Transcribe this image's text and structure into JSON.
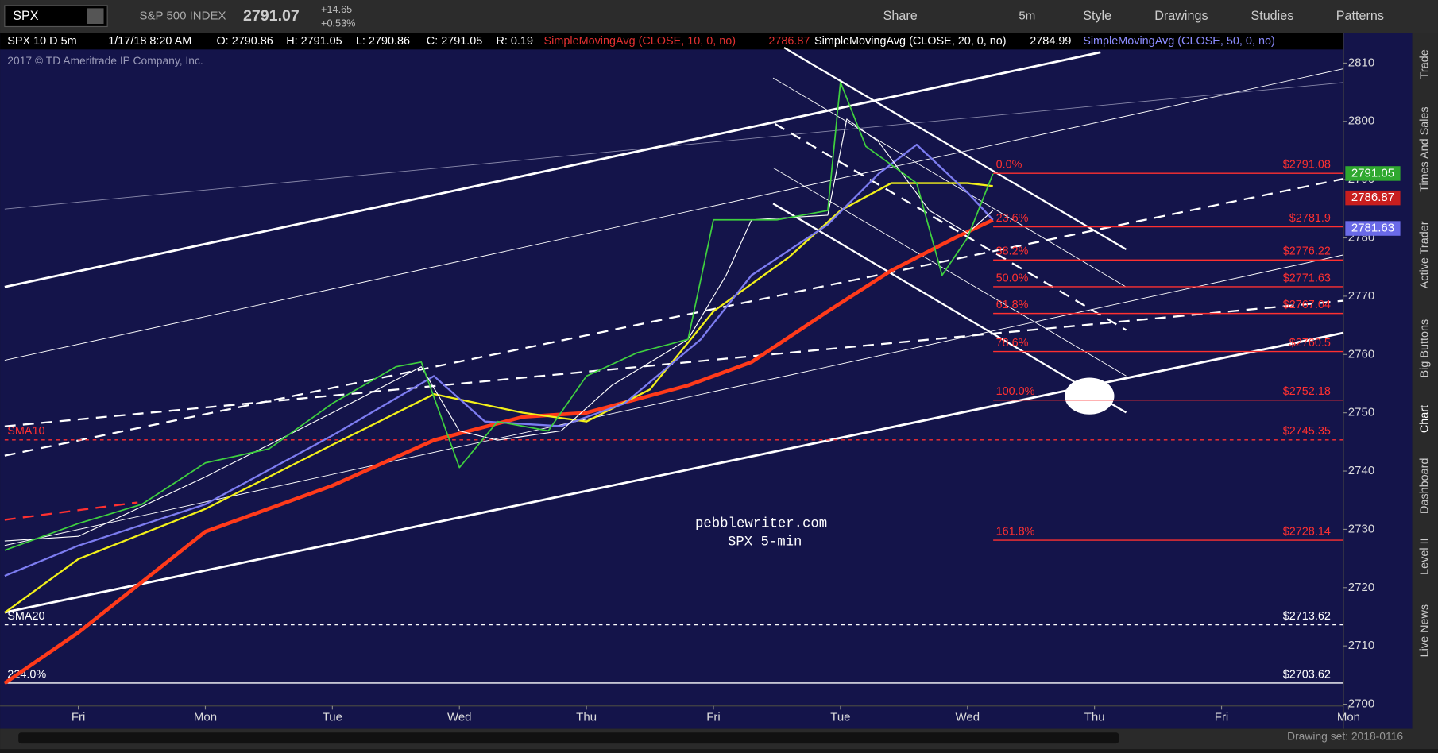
{
  "toolbar": {
    "symbol": "SPX",
    "name": "S&P 500 INDEX",
    "last": "2791.07",
    "change": "+14.65",
    "change_pct": "+0.53%",
    "buttons": [
      "Share",
      "5m",
      "Style",
      "Drawings",
      "Studies",
      "Patterns"
    ]
  },
  "header": {
    "items": [
      "SPX 10 D 5m",
      "1/17/18 8:20 AM",
      "O: 2790.86",
      "H: 2791.05",
      "L: 2790.86",
      "C: 2791.05",
      "R: 0.19"
    ],
    "studies": [
      {
        "label": "SimpleMovingAvg (CLOSE, 10, 0, no)",
        "value": "2786.87",
        "color": "#e03030"
      },
      {
        "label": "SimpleMovingAvg (CLOSE, 20, 0, no)",
        "value": "2784.99",
        "color": "#ffffff"
      },
      {
        "label": "SimpleMovingAvg (CLOSE, 50, 0, no)",
        "value": "",
        "color": "#8c8cff"
      }
    ]
  },
  "copyright": "2017 © TD Ameritrade IP Company, Inc.",
  "side_tabs": [
    "Trade",
    "Times And Sales",
    "Active Trader",
    "Big Buttons",
    "Chart",
    "Dashboard",
    "Level II",
    "Live News"
  ],
  "footer": "Drawing set: 2018-0116",
  "chart_data": {
    "type": "line",
    "annotations": [
      "pebblewriter.com",
      "SPX 5-min"
    ],
    "xlim": [
      -0.58,
      9.96
    ],
    "xticks": [
      {
        "value": 0,
        "label": "Fri"
      },
      {
        "value": 1,
        "label": "Mon"
      },
      {
        "value": 2,
        "label": "Tue"
      },
      {
        "value": 3,
        "label": "Wed"
      },
      {
        "value": 4,
        "label": "Thu"
      },
      {
        "value": 5,
        "label": "Fri"
      },
      {
        "value": 6,
        "label": "Tue"
      },
      {
        "value": 7,
        "label": "Wed"
      },
      {
        "value": 8,
        "label": "Thu"
      },
      {
        "value": 9,
        "label": "Fri"
      },
      {
        "value": 10,
        "label": "Mon"
      }
    ],
    "ylim": [
      2699.7,
      2815
    ],
    "yticks": [
      2700,
      2710,
      2720,
      2730,
      2740,
      2750,
      2760,
      2770,
      2780,
      2790,
      2800,
      2810
    ],
    "series": [
      {
        "color": "#ff3a1a",
        "width": 4,
        "x": [
          -0.58,
          0,
          1,
          2,
          2.8,
          3.5,
          4,
          4.8,
          5.3,
          5.9,
          6.4,
          6.9,
          7.2
        ],
        "values": [
          2703.6,
          2712.3,
          2729.6,
          2737.5,
          2745.3,
          2749.3,
          2750,
          2754.7,
          2758.7,
          2767.4,
          2774.4,
          2780,
          2783.1
        ]
      },
      {
        "color": "#f2f01a",
        "width": 2,
        "x": [
          -0.58,
          0,
          1,
          2,
          2.8,
          3.5,
          4,
          4.5,
          5,
          5.6,
          6,
          6.4,
          7,
          7.2
        ],
        "values": [
          2715.7,
          2724.9,
          2733.5,
          2744.5,
          2753.2,
          2750,
          2748.5,
          2754,
          2767.4,
          2776.8,
          2784.7,
          2789.4,
          2789.4,
          2788.9
        ]
      },
      {
        "color": "#7c7cf0",
        "width": 2,
        "x": [
          -0.58,
          0,
          1,
          2,
          2.8,
          3.2,
          3.8,
          4.3,
          4.9,
          5.3,
          5.9,
          6.3,
          6.6,
          7,
          7.2
        ],
        "values": [
          2722,
          2727.2,
          2734.3,
          2746.1,
          2756.3,
          2748.5,
          2747.7,
          2751.6,
          2762.6,
          2773.6,
          2782.3,
          2791,
          2796,
          2787.8,
          2783.1
        ]
      },
      {
        "color": "#ffffff",
        "width": 1,
        "x": [
          -0.58,
          0,
          1,
          2,
          2.7,
          3,
          3.3,
          3.8,
          4.2,
          4.8,
          5.1,
          5.3,
          5.9,
          6.05,
          6.3,
          6.7,
          7,
          7.2
        ],
        "values": [
          2728,
          2728.8,
          2739,
          2750,
          2757.9,
          2746.9,
          2745.3,
          2746.9,
          2754.7,
          2762.6,
          2773.6,
          2783.1,
          2783.9,
          2800.4,
          2796.5,
          2784.7,
          2780.8,
          2784.7
        ]
      },
      {
        "color": "#3fd03f",
        "width": 1.5,
        "x": [
          -0.58,
          0,
          0.5,
          1,
          1.5,
          2,
          2.5,
          2.7,
          3,
          3.3,
          3.7,
          4,
          4.4,
          4.8,
          5,
          5.5,
          5.9,
          6,
          6.2,
          6.6,
          6.8,
          7,
          7.2
        ],
        "values": [
          2726.4,
          2731,
          2734.3,
          2741.4,
          2743.8,
          2751.6,
          2757.9,
          2758.7,
          2740.6,
          2748.5,
          2746.9,
          2756.3,
          2760.3,
          2762.6,
          2783.1,
          2783.1,
          2784.7,
          2806.7,
          2795.7,
          2789.4,
          2773.6,
          2780,
          2791
        ]
      }
    ],
    "levels": [
      {
        "value": 2791.08,
        "label": "$2791.08",
        "tag": "0.0%",
        "color": "#ff3030",
        "dashed": false,
        "extent": "right"
      },
      {
        "value": 2781.9,
        "label": "$2781.9",
        "tag": "23.6%",
        "color": "#ff3030",
        "dashed": false,
        "extent": "right"
      },
      {
        "value": 2776.22,
        "label": "$2776.22",
        "tag": "38.2%",
        "color": "#ff3030",
        "dashed": false,
        "extent": "right"
      },
      {
        "value": 2771.63,
        "label": "$2771.63",
        "tag": "50.0%",
        "color": "#ff3030",
        "dashed": false,
        "extent": "right"
      },
      {
        "value": 2767.04,
        "label": "$2767.04",
        "tag": "61.8%",
        "color": "#ff3030",
        "dashed": false,
        "extent": "right"
      },
      {
        "value": 2760.5,
        "label": "$2760.5",
        "tag": "78.6%",
        "color": "#ff3030",
        "dashed": false,
        "extent": "right"
      },
      {
        "value": 2752.18,
        "label": "$2752.18",
        "tag": "100.0%",
        "color": "#ff3030",
        "dashed": false,
        "extent": "right"
      },
      {
        "value": 2745.35,
        "label": "$2745.35",
        "tag": "SMA10",
        "color": "#ff3030",
        "dashed": true,
        "extent": "full"
      },
      {
        "value": 2728.14,
        "label": "$2728.14",
        "tag": "161.8%",
        "color": "#ff3030",
        "dashed": false,
        "extent": "right"
      },
      {
        "value": 2713.62,
        "label": "$2713.62",
        "tag": "SMA20",
        "color": "#ffffff",
        "dashed": true,
        "extent": "full"
      },
      {
        "value": 2703.62,
        "label": "$2703.62",
        "tag": "224.0%",
        "color": "#ffffff",
        "dashed": false,
        "extent": "full"
      }
    ],
    "price_tags": [
      {
        "value": 2791.05,
        "color": "#2fa82f"
      },
      {
        "value": 2786.87,
        "color": "#c81e1e"
      },
      {
        "value": 2781.63,
        "color": "#6a6ae8"
      }
    ]
  }
}
